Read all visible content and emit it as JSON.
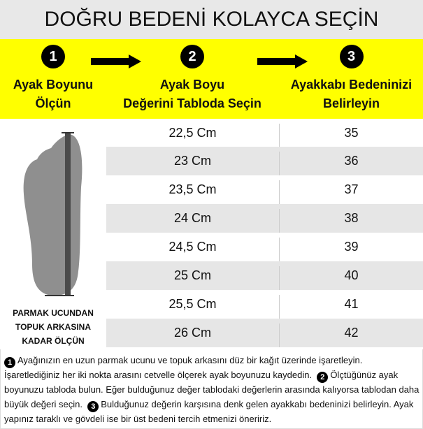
{
  "title": "DOĞRU BEDENİ KOLAYCA SEÇİN",
  "steps": [
    {
      "number": "1",
      "line1": "Ayak Boyunu",
      "line2": "Ölçün"
    },
    {
      "number": "2",
      "line1": "Ayak Boyu",
      "line2": "Değerini Tabloda Seçin"
    },
    {
      "number": "3",
      "line1": "Ayakkabı Bedeninizi",
      "line2": "Belirleyin"
    }
  ],
  "colors": {
    "title_bg": "#e8e8e8",
    "band": "#ffff00",
    "row_alt": "#e6e6e6"
  },
  "foot_illustration": {
    "icon": "foot-ruler-icon",
    "caption": [
      "PARMAK UCUNDAN",
      "TOPUK ARKASINA",
      "KADAR ÖLÇÜN"
    ]
  },
  "table": {
    "rows": [
      {
        "length": "22,5 Cm",
        "size": "35"
      },
      {
        "length": "23 Cm",
        "size": "36"
      },
      {
        "length": "23,5 Cm",
        "size": "37"
      },
      {
        "length": "24 Cm",
        "size": "38"
      },
      {
        "length": "24,5 Cm",
        "size": "39"
      },
      {
        "length": "25 Cm",
        "size": "40"
      },
      {
        "length": "25,5 Cm",
        "size": "41"
      },
      {
        "length": "26 Cm",
        "size": "42"
      }
    ]
  },
  "instructions": {
    "n1": "1",
    "t1": "Ayağınızın en uzun parmak ucunu ve topuk arkasını düz bir kağıt üzerinde işaretleyin. İşaretlediğiniz her iki nokta arasını cetvelle ölçerek ayak boyunuzu kaydedin.",
    "n2": "2",
    "t2": "Ölçtüğünüz ayak boyunuzu tabloda bulun. Eğer bulduğunuz değer tablodaki değerlerin arasında kalıyorsa tablodan daha büyük değeri seçin.",
    "n3": "3",
    "t3": "Bulduğunuz değerin karşısına denk gelen ayakkabı bedeninizi belirleyin. Ayak yapınız taraklı ve gövdeli ise bir üst bedeni tercih etmenizi öneririz."
  }
}
